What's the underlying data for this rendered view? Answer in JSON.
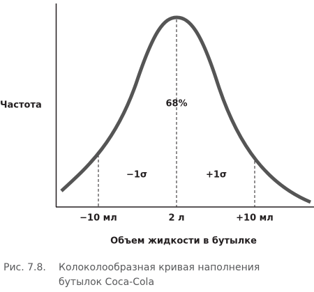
{
  "figure": {
    "y_axis_label": "Частота",
    "center_label": "68%",
    "minus_sigma": "−1σ",
    "plus_sigma": "+1σ",
    "x_labels": [
      "−10 мл",
      "2 л",
      "+10 мл"
    ],
    "x_axis_label": "Объем жидкости в бутылке"
  },
  "caption": {
    "number": "Рис. 7.8.",
    "lines": [
      "Колоколообразная кривая наполнения",
      "бутылок Coca-Cola"
    ]
  }
}
